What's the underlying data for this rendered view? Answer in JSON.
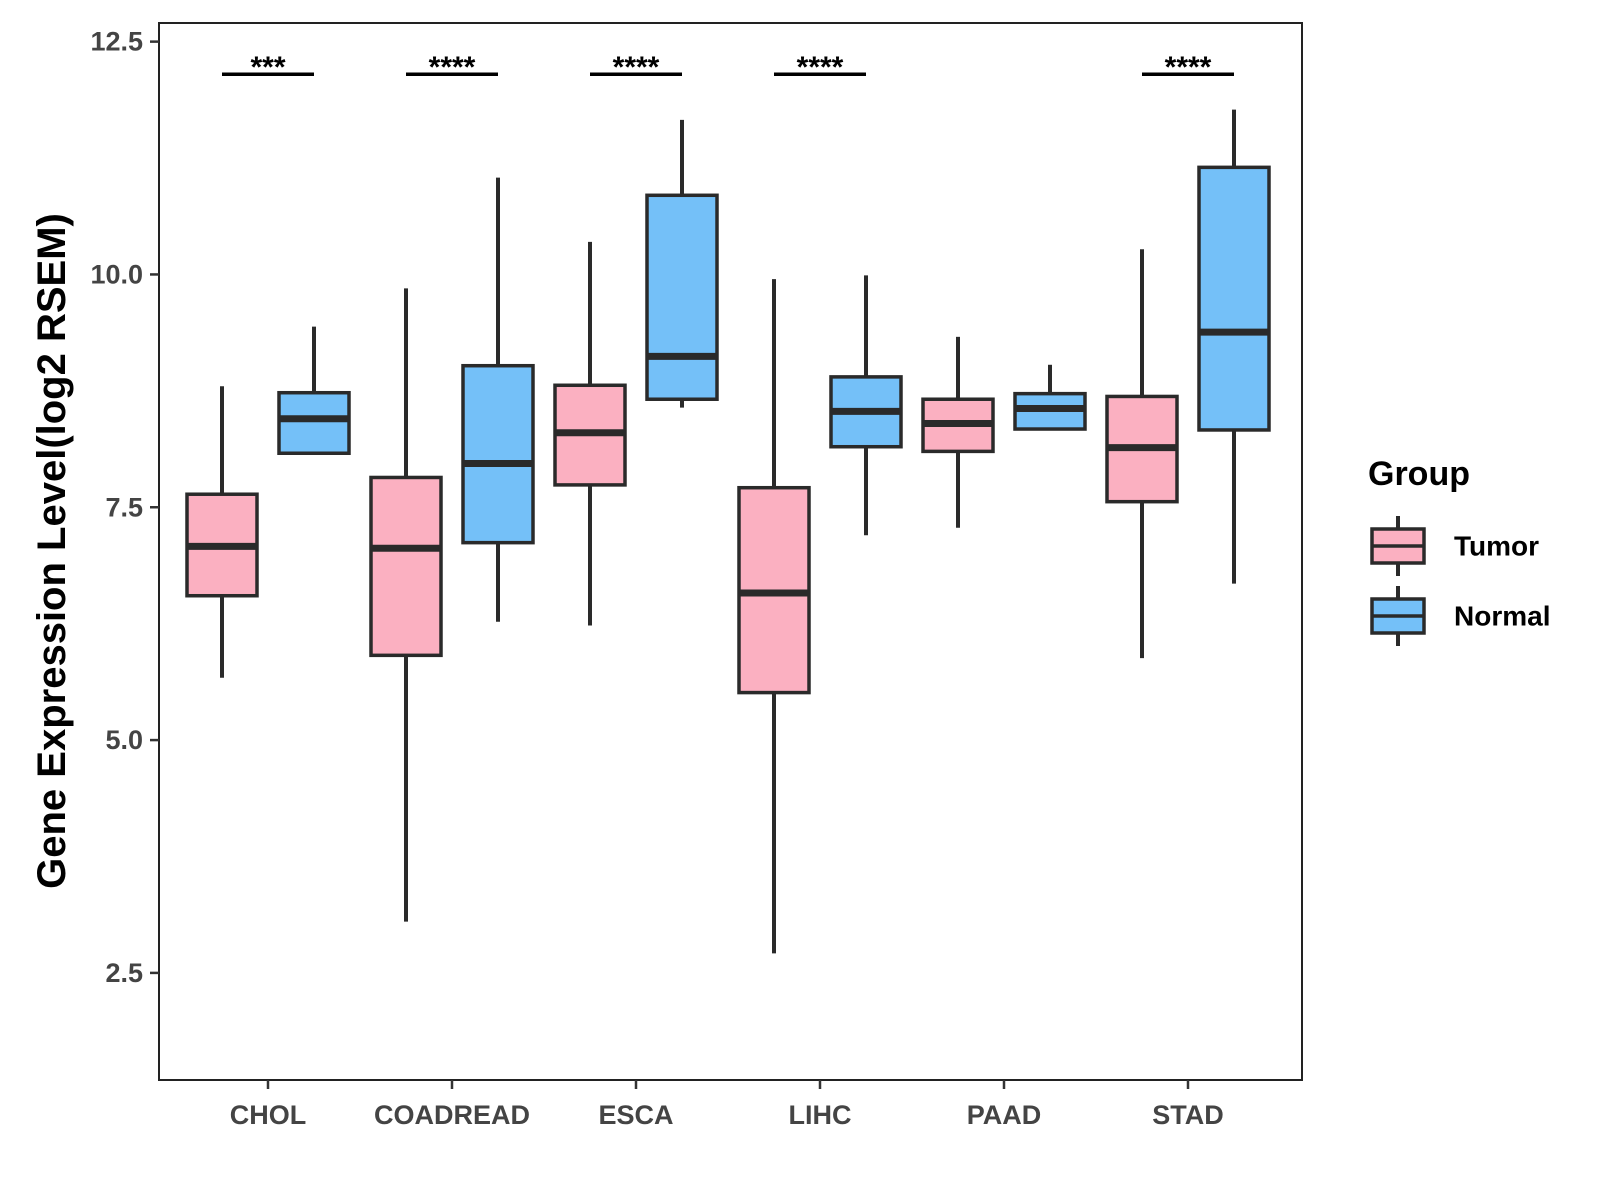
{
  "chart_data": {
    "type": "boxplot",
    "title": "",
    "xlabel": "",
    "ylabel": "Gene Expression Level(log2 RSEM)",
    "ylim": [
      1.35,
      12.7
    ],
    "yticks": [
      2.5,
      5.0,
      7.5,
      10.0,
      12.5
    ],
    "ytick_labels": [
      "2.5",
      "5.0",
      "7.5",
      "10.0",
      "12.5"
    ],
    "categories": [
      "CHOL",
      "COADREAD",
      "ESCA",
      "LIHC",
      "PAAD",
      "STAD"
    ],
    "series": [
      {
        "name": "Tumor",
        "color": "#FBB0C1",
        "boxes": [
          {
            "category": "CHOL",
            "whisker_low": 5.67,
            "q1": 6.55,
            "median": 7.08,
            "q3": 7.64,
            "whisker_high": 8.8
          },
          {
            "category": "COADREAD",
            "whisker_low": 3.05,
            "q1": 5.91,
            "median": 7.06,
            "q3": 7.82,
            "whisker_high": 9.85
          },
          {
            "category": "ESCA",
            "whisker_low": 6.23,
            "q1": 7.74,
            "median": 8.3,
            "q3": 8.81,
            "whisker_high": 10.35
          },
          {
            "category": "LIHC",
            "whisker_low": 2.71,
            "q1": 5.51,
            "median": 6.58,
            "q3": 7.71,
            "whisker_high": 9.95
          },
          {
            "category": "PAAD",
            "whisker_low": 7.28,
            "q1": 8.1,
            "median": 8.4,
            "q3": 8.66,
            "whisker_high": 9.33
          },
          {
            "category": "STAD",
            "whisker_low": 5.88,
            "q1": 7.56,
            "median": 8.14,
            "q3": 8.69,
            "whisker_high": 10.27
          }
        ]
      },
      {
        "name": "Normal",
        "color": "#74C0F8",
        "boxes": [
          {
            "category": "CHOL",
            "whisker_low": 8.08,
            "q1": 8.08,
            "median": 8.45,
            "q3": 8.73,
            "whisker_high": 9.44
          },
          {
            "category": "COADREAD",
            "whisker_low": 6.27,
            "q1": 7.12,
            "median": 7.97,
            "q3": 9.02,
            "whisker_high": 11.04
          },
          {
            "category": "ESCA",
            "whisker_low": 8.57,
            "q1": 8.66,
            "median": 9.12,
            "q3": 10.85,
            "whisker_high": 11.66
          },
          {
            "category": "LIHC",
            "whisker_low": 7.2,
            "q1": 8.15,
            "median": 8.53,
            "q3": 8.9,
            "whisker_high": 9.99
          },
          {
            "category": "PAAD",
            "whisker_low": 8.34,
            "q1": 8.34,
            "median": 8.56,
            "q3": 8.72,
            "whisker_high": 9.03
          },
          {
            "category": "STAD",
            "whisker_low": 6.68,
            "q1": 8.33,
            "median": 9.38,
            "q3": 11.15,
            "whisker_high": 11.77
          }
        ]
      }
    ],
    "significance": [
      {
        "category": "CHOL",
        "label": "***"
      },
      {
        "category": "COADREAD",
        "label": "****"
      },
      {
        "category": "ESCA",
        "label": "****"
      },
      {
        "category": "LIHC",
        "label": "****"
      },
      {
        "category": "PAAD",
        "label": ""
      },
      {
        "category": "STAD",
        "label": "****"
      }
    ],
    "significance_level": 12.15,
    "legend": {
      "title": "Group",
      "placement": "right",
      "items": [
        "Tumor",
        "Normal"
      ]
    },
    "grid": false
  }
}
